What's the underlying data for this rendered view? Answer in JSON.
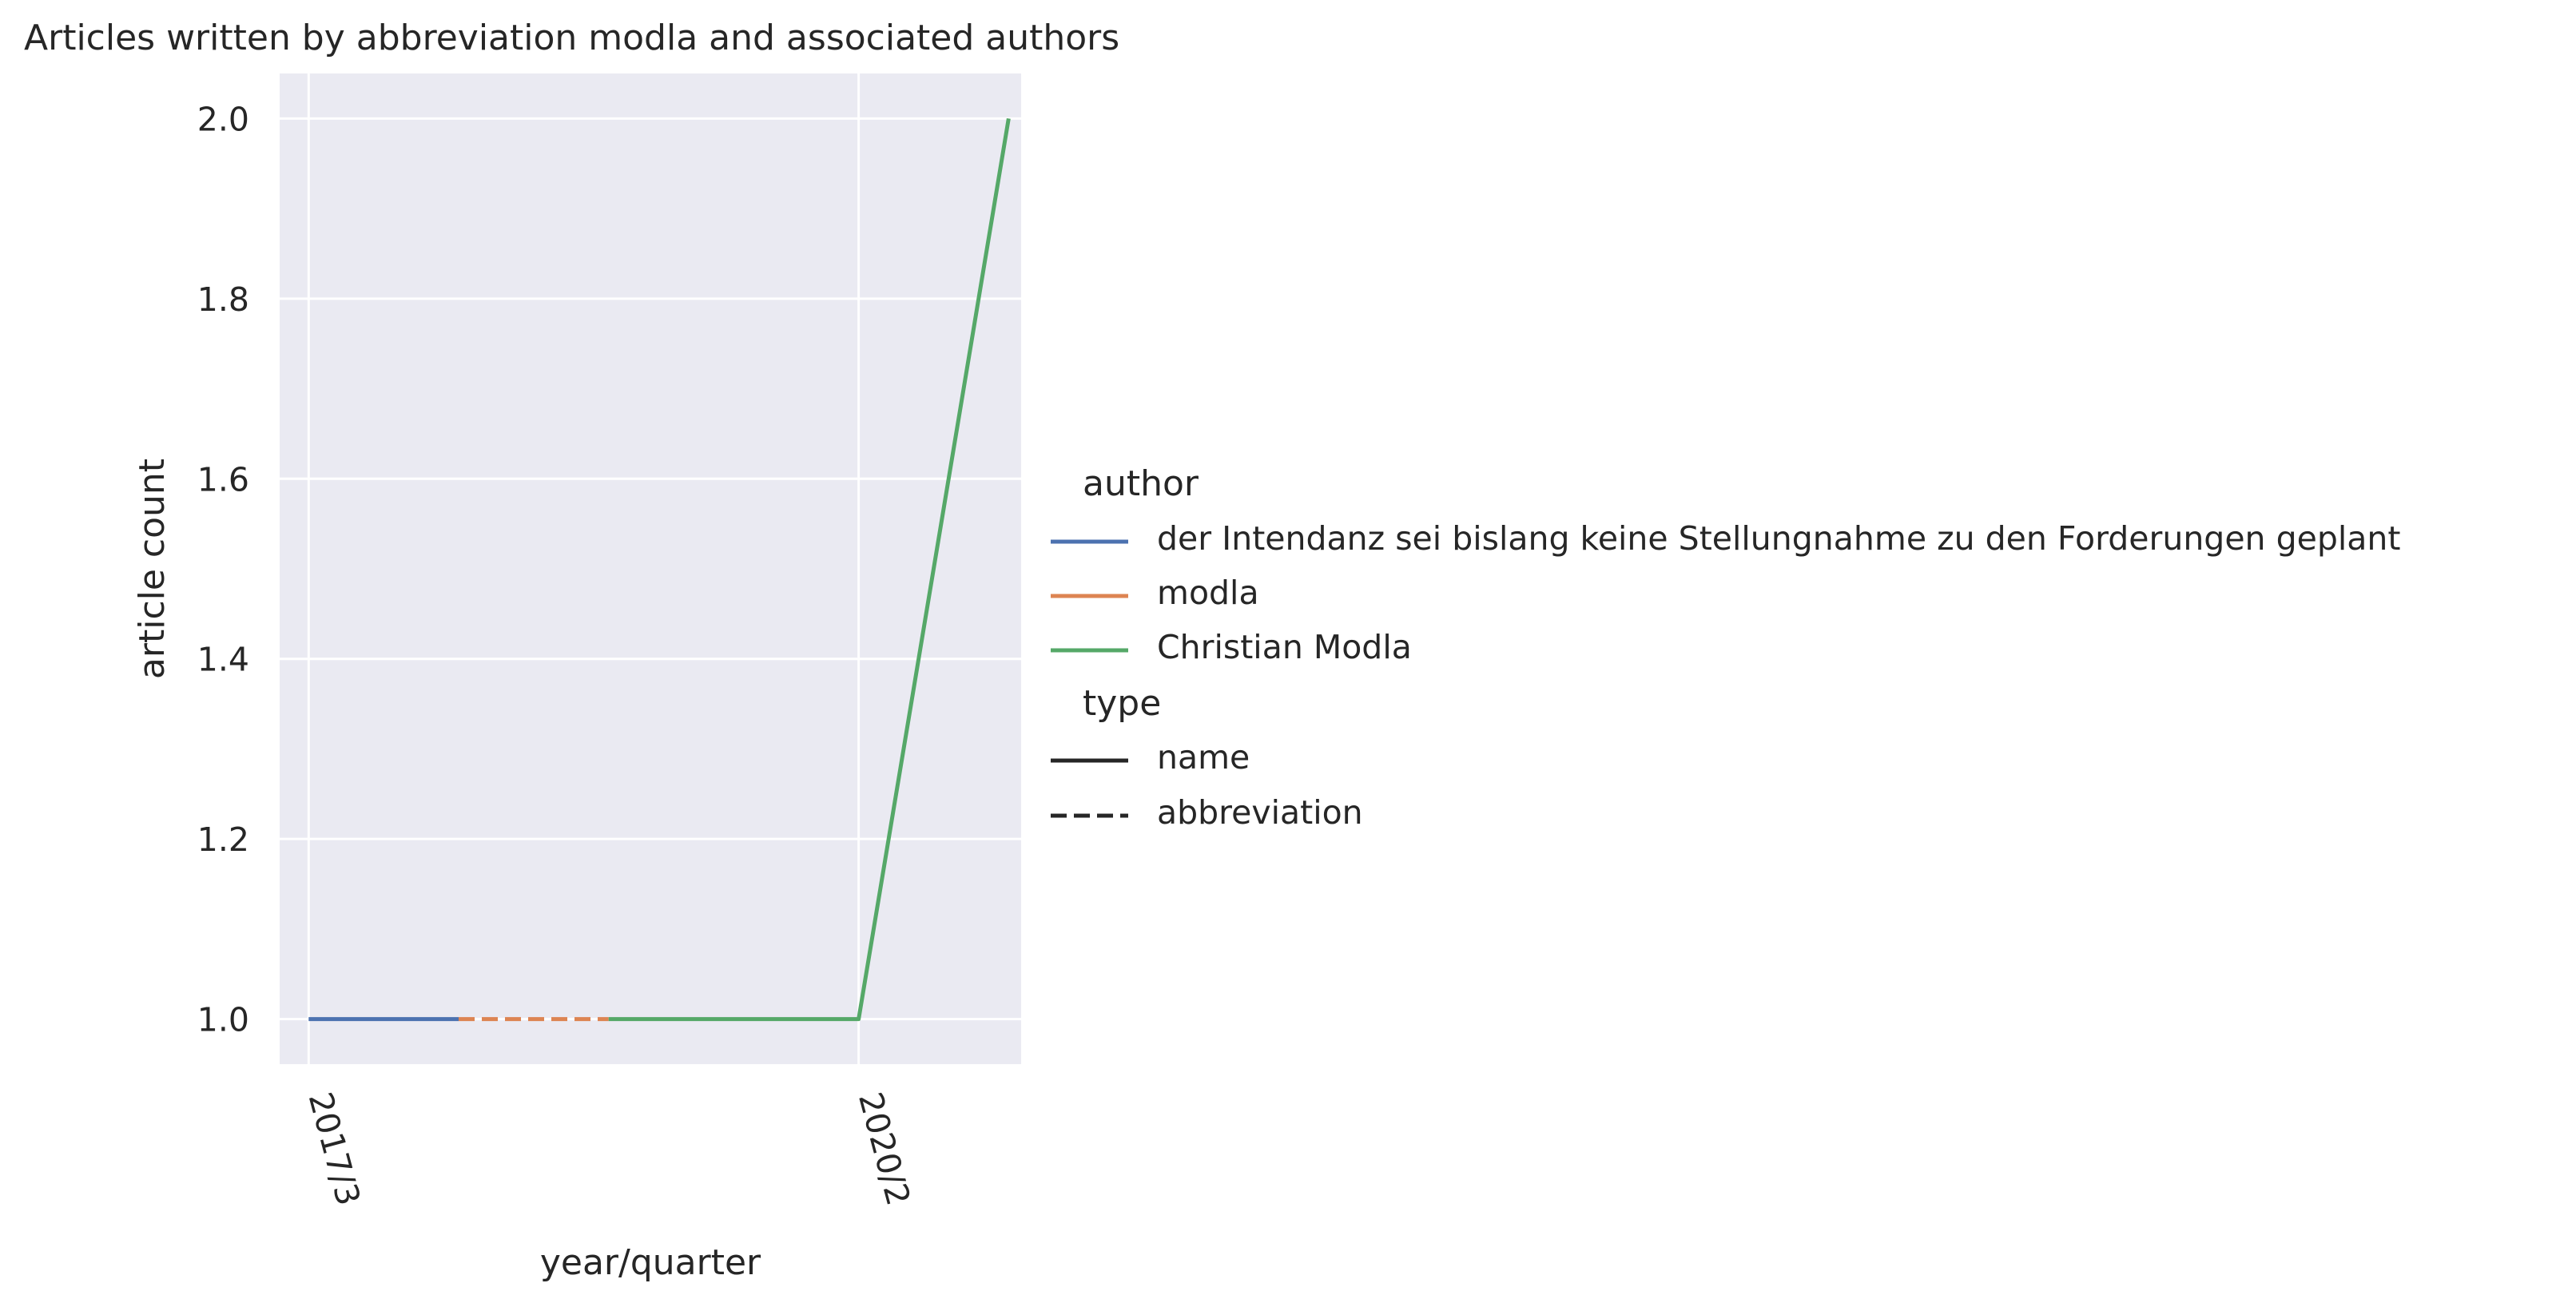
{
  "chart_data": {
    "type": "line",
    "title": "Articles written by abbreviation modla and associated authors",
    "xlabel": "year/quarter",
    "ylabel": "article count",
    "x_ticks": [
      "2017/3",
      "2020/2"
    ],
    "y_ticks": [
      "1.0",
      "1.2",
      "1.4",
      "1.6",
      "1.8",
      "2.0"
    ],
    "ylim": [
      0.95,
      2.05
    ],
    "grid": true,
    "legend_position": "right",
    "series": [
      {
        "name": "der Intendanz sei bislang keine Stellungnahme zu den Forderungen geplant",
        "type": "name",
        "color": "#4c72b0",
        "points": [
          {
            "x": "2017/3",
            "y": 1
          },
          {
            "x": "2018/2",
            "y": 1
          }
        ]
      },
      {
        "name": "modla",
        "type": "abbreviation",
        "color": "#dd8452",
        "points": [
          {
            "x": "2018/2",
            "y": 1
          },
          {
            "x": "2019/1",
            "y": 1
          }
        ]
      },
      {
        "name": "Christian Modla",
        "type": "name",
        "color": "#55a868",
        "points": [
          {
            "x": "2019/1",
            "y": 1
          },
          {
            "x": "2020/2",
            "y": 1
          },
          {
            "x": "2021/1",
            "y": 2
          }
        ]
      }
    ],
    "legend": {
      "hue_title": "author",
      "hue_entries": [
        {
          "label": "der Intendanz sei bislang keine Stellungnahme zu den Forderungen geplant",
          "color": "#4c72b0"
        },
        {
          "label": "modla",
          "color": "#dd8452"
        },
        {
          "label": "Christian Modla",
          "color": "#55a868"
        }
      ],
      "style_title": "type",
      "style_entries": [
        {
          "label": "name",
          "dash": "solid"
        },
        {
          "label": "abbreviation",
          "dash": "dashed"
        }
      ]
    }
  }
}
